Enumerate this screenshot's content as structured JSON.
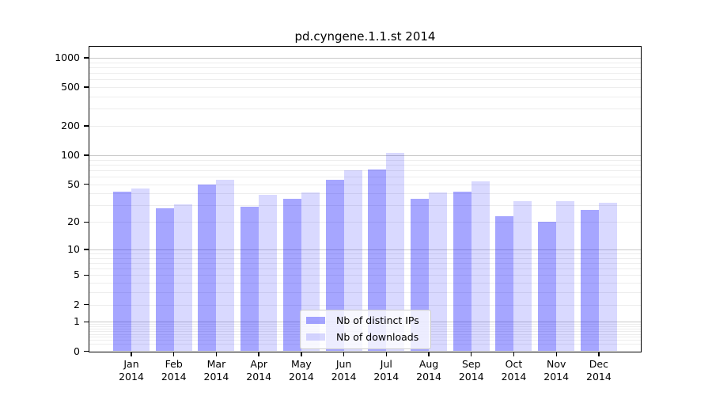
{
  "title": "pd.cyngene.1.1.st 2014",
  "chart_data": {
    "type": "bar",
    "title": "pd.cyngene.1.1.st 2014",
    "categories": [
      "Jan",
      "Feb",
      "Mar",
      "Apr",
      "May",
      "Jun",
      "Jul",
      "Aug",
      "Sep",
      "Oct",
      "Nov",
      "Dec"
    ],
    "x_year_label": "2014",
    "series": [
      {
        "name": "Nb of distinct IPs",
        "color": "#0000ff",
        "alpha": 0.35,
        "hex_on_white": "#a6a6ff",
        "values": [
          42,
          28,
          50,
          29,
          35,
          56,
          71,
          35,
          42,
          23,
          20,
          27
        ]
      },
      {
        "name": "Nb of downloads",
        "color": "#0000ff",
        "alpha": 0.15,
        "hex_on_white": "#d9d9ff",
        "values": [
          45,
          31,
          56,
          39,
          41,
          70,
          105,
          41,
          54,
          33,
          33,
          32
        ]
      }
    ],
    "yscale": "log1p",
    "y_ticks": [
      0,
      1,
      2,
      5,
      10,
      20,
      50,
      100,
      200,
      500,
      1000
    ],
    "ylim": [
      0,
      1300
    ],
    "xlabel": "",
    "ylabel": "",
    "grid": true,
    "legend_position": "lower center",
    "grid_major_color": "#c9c9c9",
    "grid_minor_color": "#ededed"
  }
}
